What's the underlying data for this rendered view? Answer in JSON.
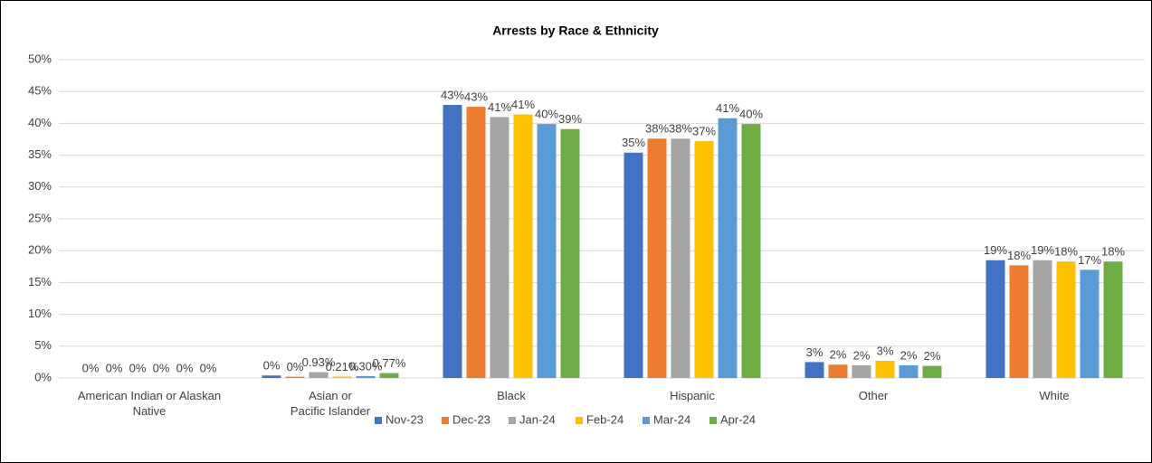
{
  "chart_data": {
    "type": "bar",
    "title": "Arrests by Race & Ethnicity",
    "categories": [
      "American Indian or Alaskan Native",
      "Asian or\nPacific Islander",
      "Black",
      "Hispanic",
      "Other",
      "White"
    ],
    "series": [
      {
        "name": "Nov-23",
        "color": "#4472c4",
        "values": [
          0,
          0.4,
          42.9,
          35.4,
          2.5,
          18.5
        ],
        "value_labels": [
          "0%",
          "0%",
          "43%",
          "35%",
          "3%",
          "19%"
        ]
      },
      {
        "name": "Dec-23",
        "color": "#ed7d31",
        "values": [
          0,
          0.2,
          42.6,
          37.6,
          2.1,
          17.7
        ],
        "value_labels": [
          "0%",
          "0%",
          "43%",
          "38%",
          "2%",
          "18%"
        ]
      },
      {
        "name": "Jan-24",
        "color": "#a5a5a5",
        "values": [
          0,
          0.93,
          41.0,
          37.6,
          2.0,
          18.5
        ],
        "value_labels": [
          "0%",
          "0.93%",
          "41%",
          "38%",
          "2%",
          "19%"
        ]
      },
      {
        "name": "Feb-24",
        "color": "#ffc000",
        "values": [
          0,
          0.21,
          41.4,
          37.2,
          2.7,
          18.3
        ],
        "value_labels": [
          "0%",
          "0.21%",
          "41%",
          "37%",
          "3%",
          "18%"
        ]
      },
      {
        "name": "Mar-24",
        "color": "#5b9bd5",
        "values": [
          0,
          0.3,
          39.9,
          40.8,
          2.0,
          17.0
        ],
        "value_labels": [
          "0%",
          "0.30%",
          "40%",
          "41%",
          "2%",
          "17%"
        ]
      },
      {
        "name": "Apr-24",
        "color": "#70ad47",
        "values": [
          0,
          0.77,
          39.1,
          39.9,
          1.9,
          18.3
        ],
        "value_labels": [
          "0%",
          "0.77%",
          "39%",
          "40%",
          "2%",
          "18%"
        ]
      }
    ],
    "ylim": [
      0,
      50
    ],
    "yticks": [
      {
        "value": 0,
        "label": "0%"
      },
      {
        "value": 5,
        "label": "5%"
      },
      {
        "value": 10,
        "label": "10%"
      },
      {
        "value": 15,
        "label": "15%"
      },
      {
        "value": 20,
        "label": "20%"
      },
      {
        "value": 25,
        "label": "25%"
      },
      {
        "value": 30,
        "label": "30%"
      },
      {
        "value": 35,
        "label": "35%"
      },
      {
        "value": 40,
        "label": "40%"
      },
      {
        "value": 45,
        "label": "45%"
      },
      {
        "value": 50,
        "label": "50%"
      }
    ],
    "grid": true,
    "legend": "bottom"
  }
}
